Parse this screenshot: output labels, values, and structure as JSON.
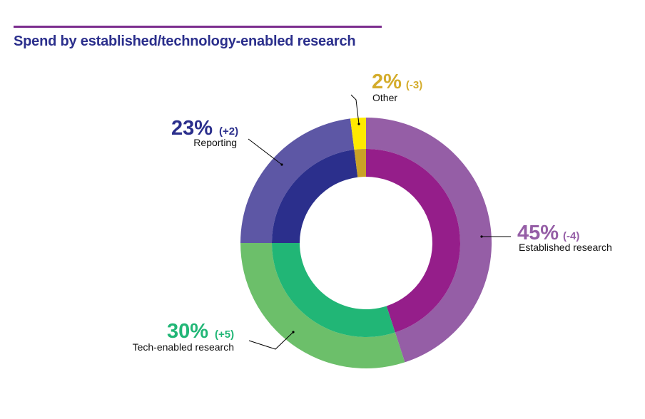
{
  "title": "Spend by established/technology-enabled research",
  "colors": {
    "accent_bar": "#7b2d8e",
    "title": "#2b2f8c"
  },
  "chart_data": {
    "type": "pie",
    "variant": "double-ring donut",
    "title": "Spend by established/technology-enabled research",
    "slices": [
      {
        "name": "Established research",
        "value": 45,
        "pct_label": "45%",
        "change_label": "(-4)",
        "outer_color": "#955ea6",
        "inner_color": "#951e8a",
        "label_color": "#955ea6"
      },
      {
        "name": "Tech-enabled research",
        "value": 30,
        "pct_label": "30%",
        "change_label": "(+5)",
        "outer_color": "#6cbf6a",
        "inner_color": "#21b676",
        "label_color": "#21b676"
      },
      {
        "name": "Reporting",
        "value": 23,
        "pct_label": "23%",
        "change_label": "(+2)",
        "outer_color": "#5d57a5",
        "inner_color": "#2b2f8c",
        "label_color": "#2b2f8c"
      },
      {
        "name": "Other",
        "value": 2,
        "pct_label": "2%",
        "change_label": "(-3)",
        "outer_color": "#ffea00",
        "inner_color": "#c9a226",
        "label_color": "#d4ac2b"
      }
    ]
  }
}
